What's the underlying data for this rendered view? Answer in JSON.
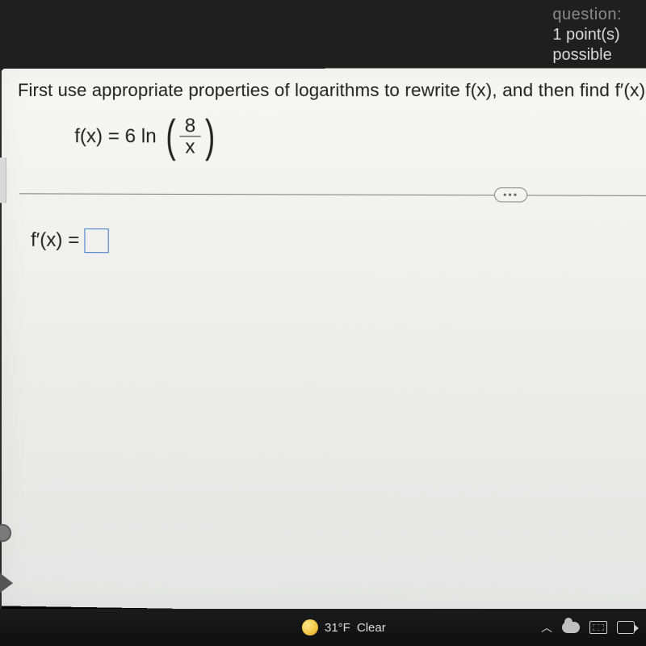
{
  "header": {
    "question_label": "question:",
    "points_line": "1 point(s)",
    "possible_line": "possible"
  },
  "problem": {
    "prompt": "First use appropriate properties of logarithms to rewrite f(x), and then find f′(x).",
    "given": {
      "lhs": "f(x) = 6 ln",
      "fraction": {
        "numerator": "8",
        "denominator": "x"
      }
    },
    "answer": {
      "label": "f′(x) =",
      "value": ""
    }
  },
  "divider": {
    "expand_icon_label": "•••"
  },
  "taskbar": {
    "temperature": "31°F",
    "condition": "Clear"
  },
  "colors": {
    "page_bg": "#f1f1ef",
    "answer_box_border": "#3b78c3",
    "dark": "#1a1a1a"
  }
}
